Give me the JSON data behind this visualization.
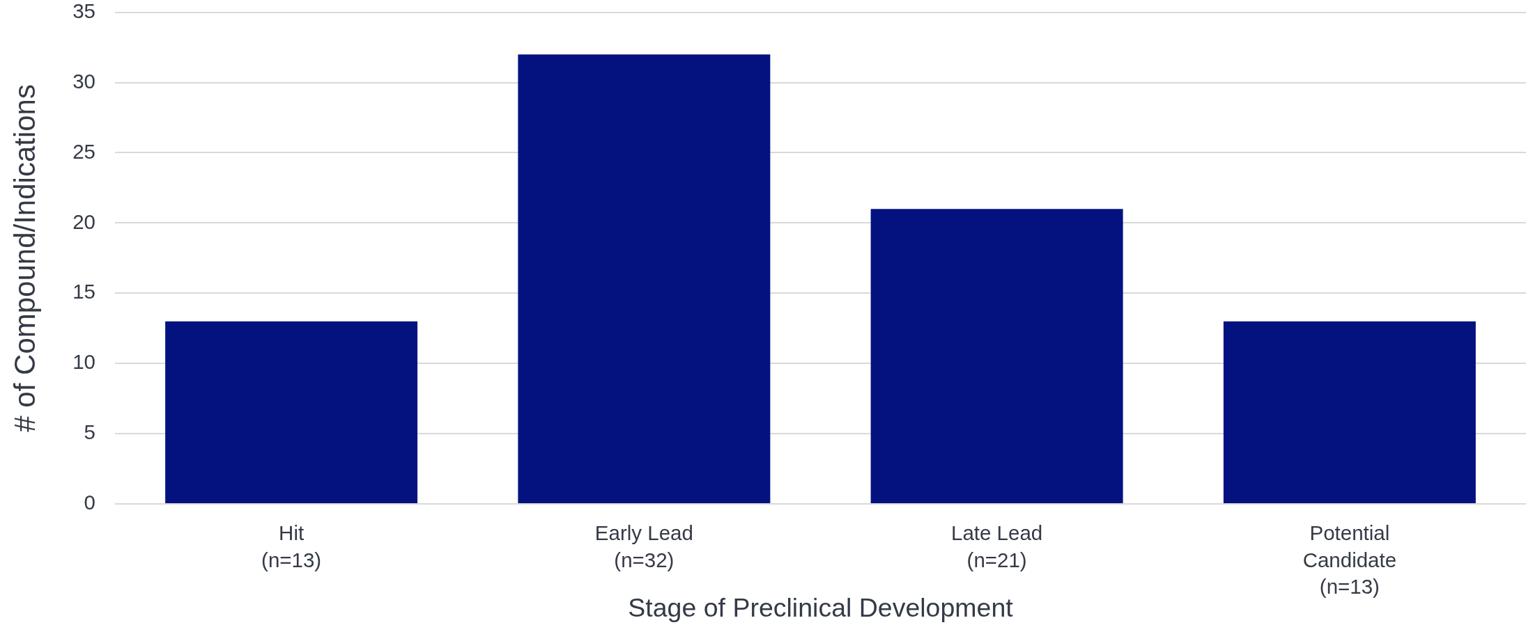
{
  "chart_data": {
    "type": "bar",
    "xlabel": "Stage of Preclinical Development",
    "ylabel": "# of Compound/Indications",
    "categories": [
      "Hit (n=13)",
      "Early Lead (n=32)",
      "Late Lead (n=21)",
      "Potential Candidate (n=13)"
    ],
    "values": [
      13,
      32,
      21,
      13
    ],
    "color": "#041280",
    "ylim": [
      0,
      35
    ],
    "yticks": [
      0,
      5,
      10,
      15,
      20,
      25,
      30,
      35
    ],
    "grid": "y"
  }
}
